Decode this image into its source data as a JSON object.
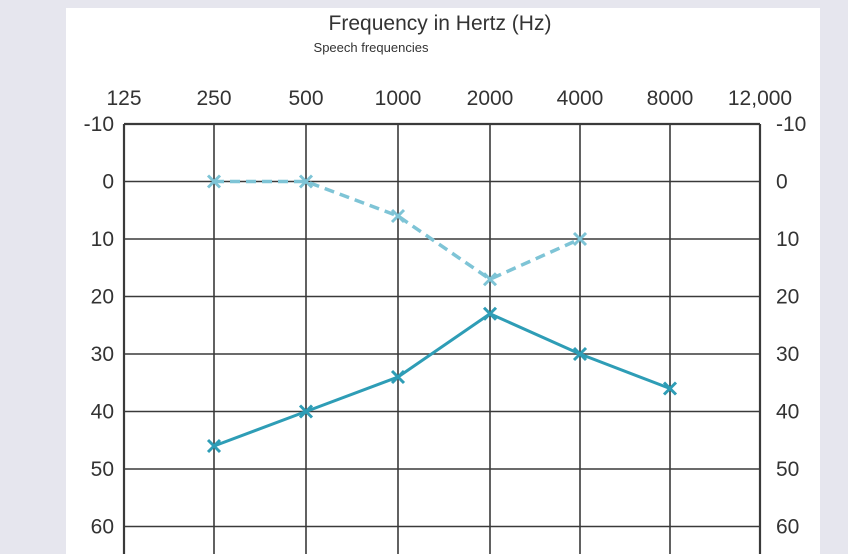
{
  "chart_data": {
    "type": "line",
    "title": "Frequency in Hertz (Hz)",
    "subtitle": "Speech frequencies",
    "x_tick_labels": [
      "125",
      "250",
      "500",
      "1000",
      "2000",
      "4000",
      "8000",
      "12,000"
    ],
    "y_tick_labels": [
      "-10",
      "0",
      "10",
      "20",
      "30",
      "40",
      "50",
      "60"
    ],
    "y_ticks": [
      -10,
      0,
      10,
      20,
      30,
      40,
      50,
      60
    ],
    "ylim": [
      -10,
      60
    ],
    "y_inverted": true,
    "grid": true,
    "series": [
      {
        "style": "dashed",
        "color": "#7ec4d6",
        "points": [
          {
            "x": "250",
            "y": 0
          },
          {
            "x": "500",
            "y": 0
          },
          {
            "x": "1000",
            "y": 6
          },
          {
            "x": "2000",
            "y": 17
          },
          {
            "x": "4000",
            "y": 10
          }
        ]
      },
      {
        "style": "solid",
        "color": "#2e9db6",
        "points": [
          {
            "x": "250",
            "y": 46
          },
          {
            "x": "500",
            "y": 40
          },
          {
            "x": "1000",
            "y": 34
          },
          {
            "x": "2000",
            "y": 23
          },
          {
            "x": "4000",
            "y": 30
          },
          {
            "x": "8000",
            "y": 36
          }
        ]
      }
    ]
  }
}
